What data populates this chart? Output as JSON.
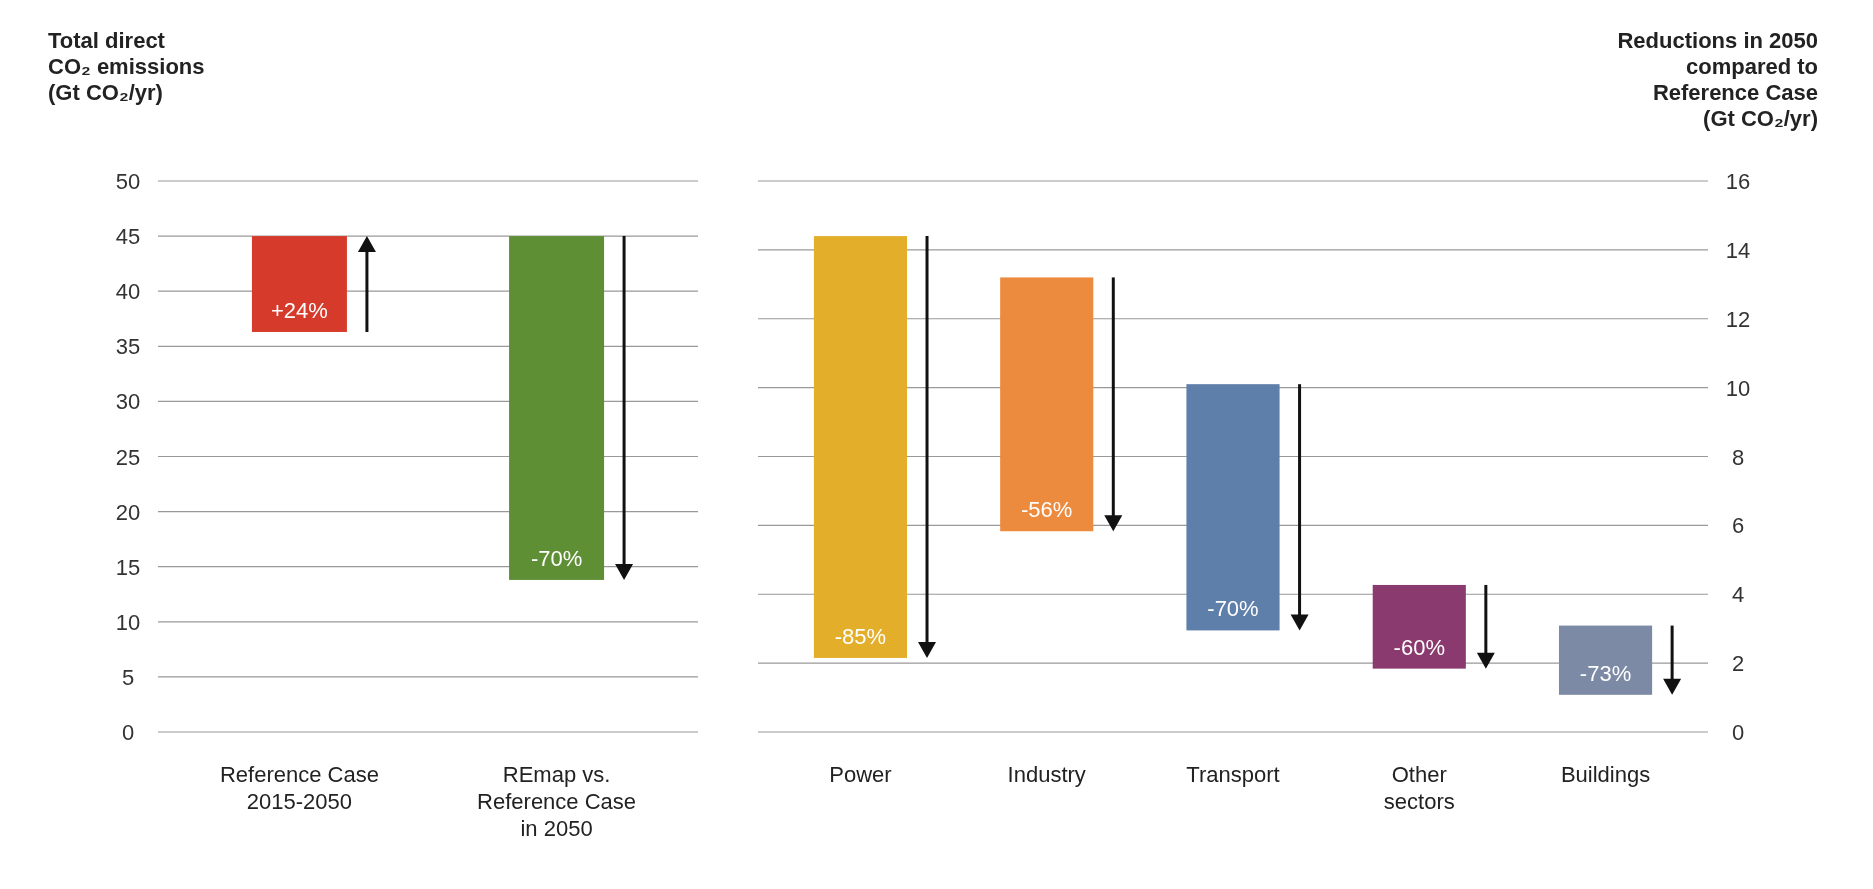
{
  "chart_data": [
    {
      "type": "bar",
      "ylabel": "Total direct\nCO₂ emissions\n(Gt CO₂/yr)",
      "categories": [
        "Reference Case\n2015-2050",
        "REmap vs.\nReference Case\nin 2050"
      ],
      "base": [
        36.3,
        13.8
      ],
      "values": [
        8.7,
        31.2
      ],
      "colors": [
        "#d63a2a",
        "#5f8f35"
      ],
      "annotations": [
        {
          "text": "+24%",
          "x": "Reference Case\n2015-2050",
          "y": 36.3
        },
        {
          "text": "-70%",
          "x": "REmap vs.\nReference Case\nin 2050",
          "y": 13.8
        }
      ],
      "ylim": [
        0,
        50
      ],
      "yticks": [
        0,
        5,
        10,
        15,
        20,
        25,
        30,
        35,
        40,
        45,
        50
      ],
      "grid": "y"
    },
    {
      "type": "bar",
      "ylabel": "Reductions in 2050\ncompared to\nReference Case\n(Gt CO₂/yr)",
      "categories": [
        "Power",
        "Industry",
        "Transport",
        "Other\nsectors",
        "Buildings"
      ],
      "base": [
        2.15,
        5.83,
        2.95,
        1.84,
        1.08
      ],
      "values": [
        12.25,
        7.37,
        7.15,
        2.43,
        2.01
      ],
      "colors": [
        "#e3ae2a",
        "#ec8a3e",
        "#5e7faa",
        "#8b3a6f",
        "#7c8aa6"
      ],
      "annotations": [
        {
          "text": "-85%",
          "x": "Power",
          "y": 2.15
        },
        {
          "text": "-56%",
          "x": "Industry",
          "y": 5.83
        },
        {
          "text": "-70%",
          "x": "Transport",
          "y": 2.95
        },
        {
          "text": "-60%",
          "x": "Other\nsectors",
          "y": 1.84
        },
        {
          "text": "-73%",
          "x": "Buildings",
          "y": 1.08
        }
      ],
      "ylim": [
        0,
        16
      ],
      "yticks": [
        0,
        2,
        4,
        6,
        8,
        10,
        12,
        14,
        16
      ],
      "grid": "y"
    }
  ]
}
